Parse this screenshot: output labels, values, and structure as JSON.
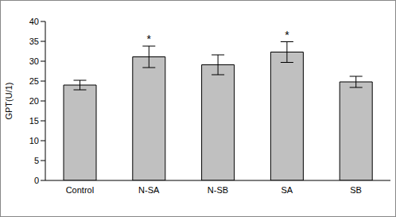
{
  "chart_data": {
    "type": "bar",
    "y_label": "GPT(U/1)",
    "categories": [
      "Control",
      "N-SA",
      "N-SB",
      "SA",
      "SB"
    ],
    "values": [
      24,
      31.1,
      29.1,
      32.3,
      24.8
    ],
    "errors": [
      1.2,
      2.7,
      2.5,
      2.6,
      1.4
    ],
    "color": "#c0c0c0",
    "ylim": [
      0,
      40
    ],
    "yticks": [
      0,
      5,
      10,
      15,
      20,
      25,
      30,
      35,
      40
    ],
    "grid": false,
    "annotations": [
      {
        "category": "N-SA",
        "text": "*"
      },
      {
        "category": "SA",
        "text": "*"
      }
    ]
  }
}
